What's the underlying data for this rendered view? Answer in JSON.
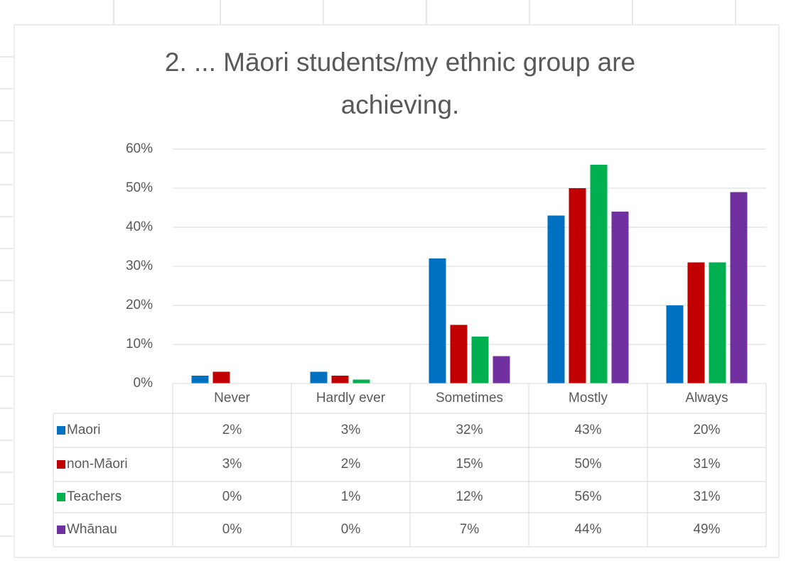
{
  "chart_data": {
    "type": "bar",
    "title": "2. ... Māori students/my ethnic group are achieving.",
    "categories": [
      "Never",
      "Hardly ever",
      "Sometimes",
      "Mostly",
      "Always"
    ],
    "series": [
      {
        "name": "Maori",
        "color": "#0070c0",
        "values": [
          2,
          3,
          32,
          43,
          20
        ],
        "value_labels": [
          "2%",
          "3%",
          "32%",
          "43%",
          "20%"
        ]
      },
      {
        "name": "non-Māori",
        "color": "#c00000",
        "values": [
          3,
          2,
          15,
          50,
          31
        ],
        "value_labels": [
          "3%",
          "2%",
          "15%",
          "50%",
          "31%"
        ]
      },
      {
        "name": "Teachers",
        "color": "#00b050",
        "values": [
          0,
          1,
          12,
          56,
          31
        ],
        "value_labels": [
          "0%",
          "1%",
          "12%",
          "56%",
          "31%"
        ]
      },
      {
        "name": "Whānau",
        "color": "#7030a0",
        "values": [
          0,
          0,
          7,
          44,
          49
        ],
        "value_labels": [
          "0%",
          "0%",
          "7%",
          "44%",
          "49%"
        ]
      }
    ],
    "ylim": [
      0,
      60
    ],
    "yticks": [
      {
        "value": 0,
        "label": "0%"
      },
      {
        "value": 10,
        "label": "10%"
      },
      {
        "value": 20,
        "label": "20%"
      },
      {
        "value": 30,
        "label": "30%"
      },
      {
        "value": 40,
        "label": "40%"
      },
      {
        "value": 50,
        "label": "50%"
      },
      {
        "value": 60,
        "label": "60%"
      }
    ],
    "grid": true
  }
}
